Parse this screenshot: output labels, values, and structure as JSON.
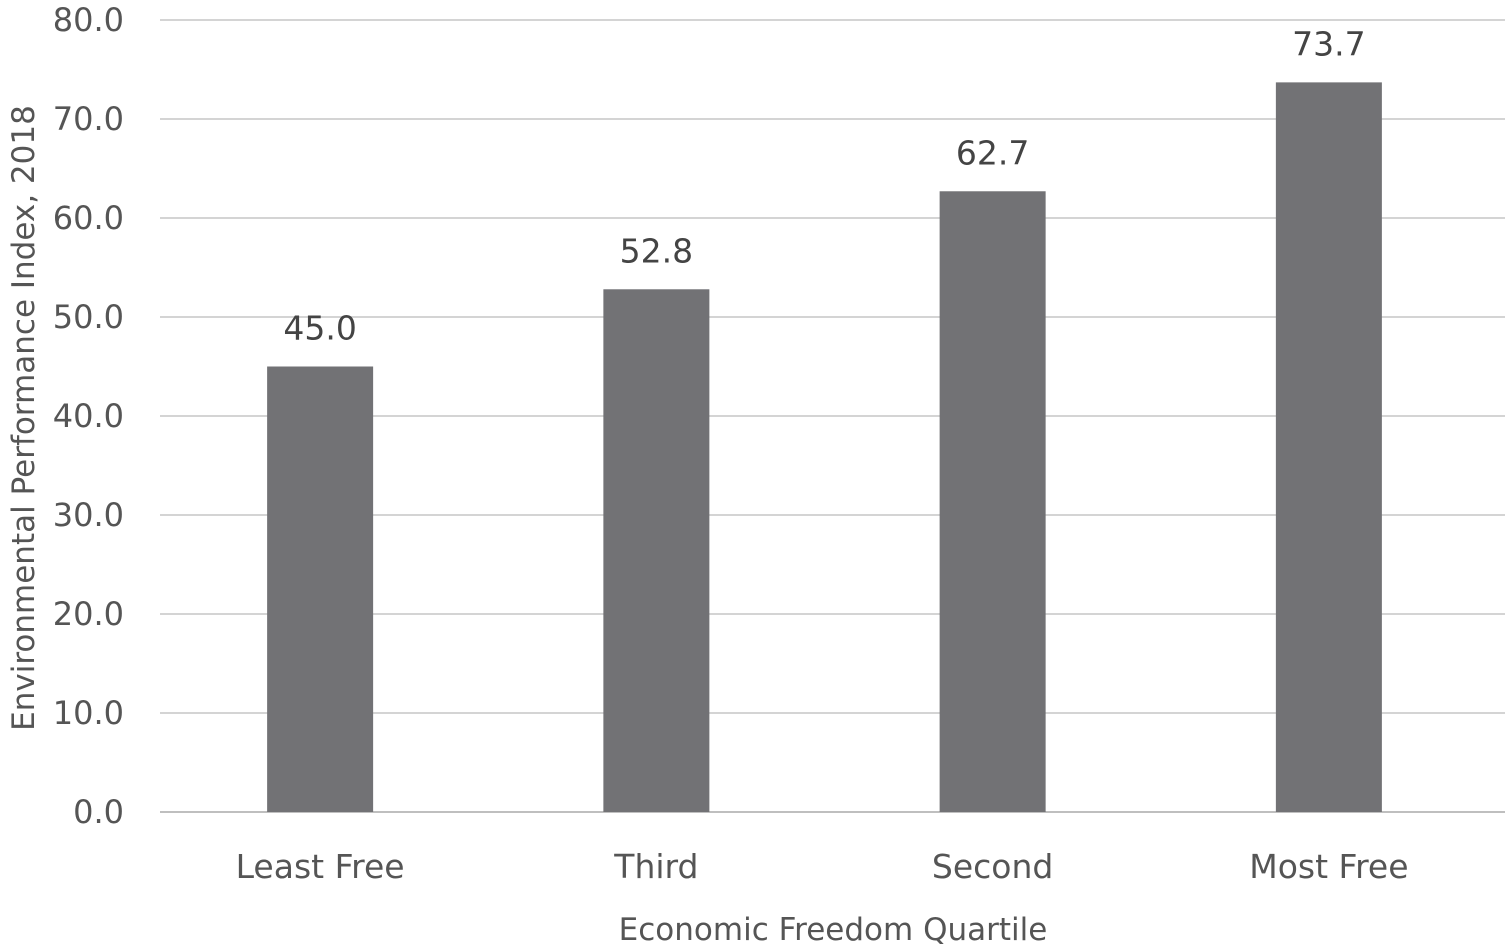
{
  "chart_data": {
    "type": "bar",
    "title": "",
    "xlabel": "Economic Freedom Quartile",
    "ylabel": "Environmental Performance Index, 2018",
    "categories": [
      "Least Free",
      "Third",
      "Second",
      "Most Free"
    ],
    "values": [
      45.0,
      52.8,
      62.7,
      73.7
    ],
    "data_labels": [
      "45.0",
      "52.8",
      "62.7",
      "73.7"
    ],
    "ylim": [
      0,
      80
    ],
    "yticks": [
      0,
      10,
      20,
      30,
      40,
      50,
      60,
      70,
      80
    ],
    "ytick_labels": [
      "0.0",
      "10.0",
      "20.0",
      "30.0",
      "40.0",
      "50.0",
      "60.0",
      "70.0",
      "80.0"
    ],
    "grid": true,
    "legend": "none",
    "colors": {
      "bar": "#727275",
      "grid": "#d4d4d4",
      "text": "#555555"
    }
  }
}
